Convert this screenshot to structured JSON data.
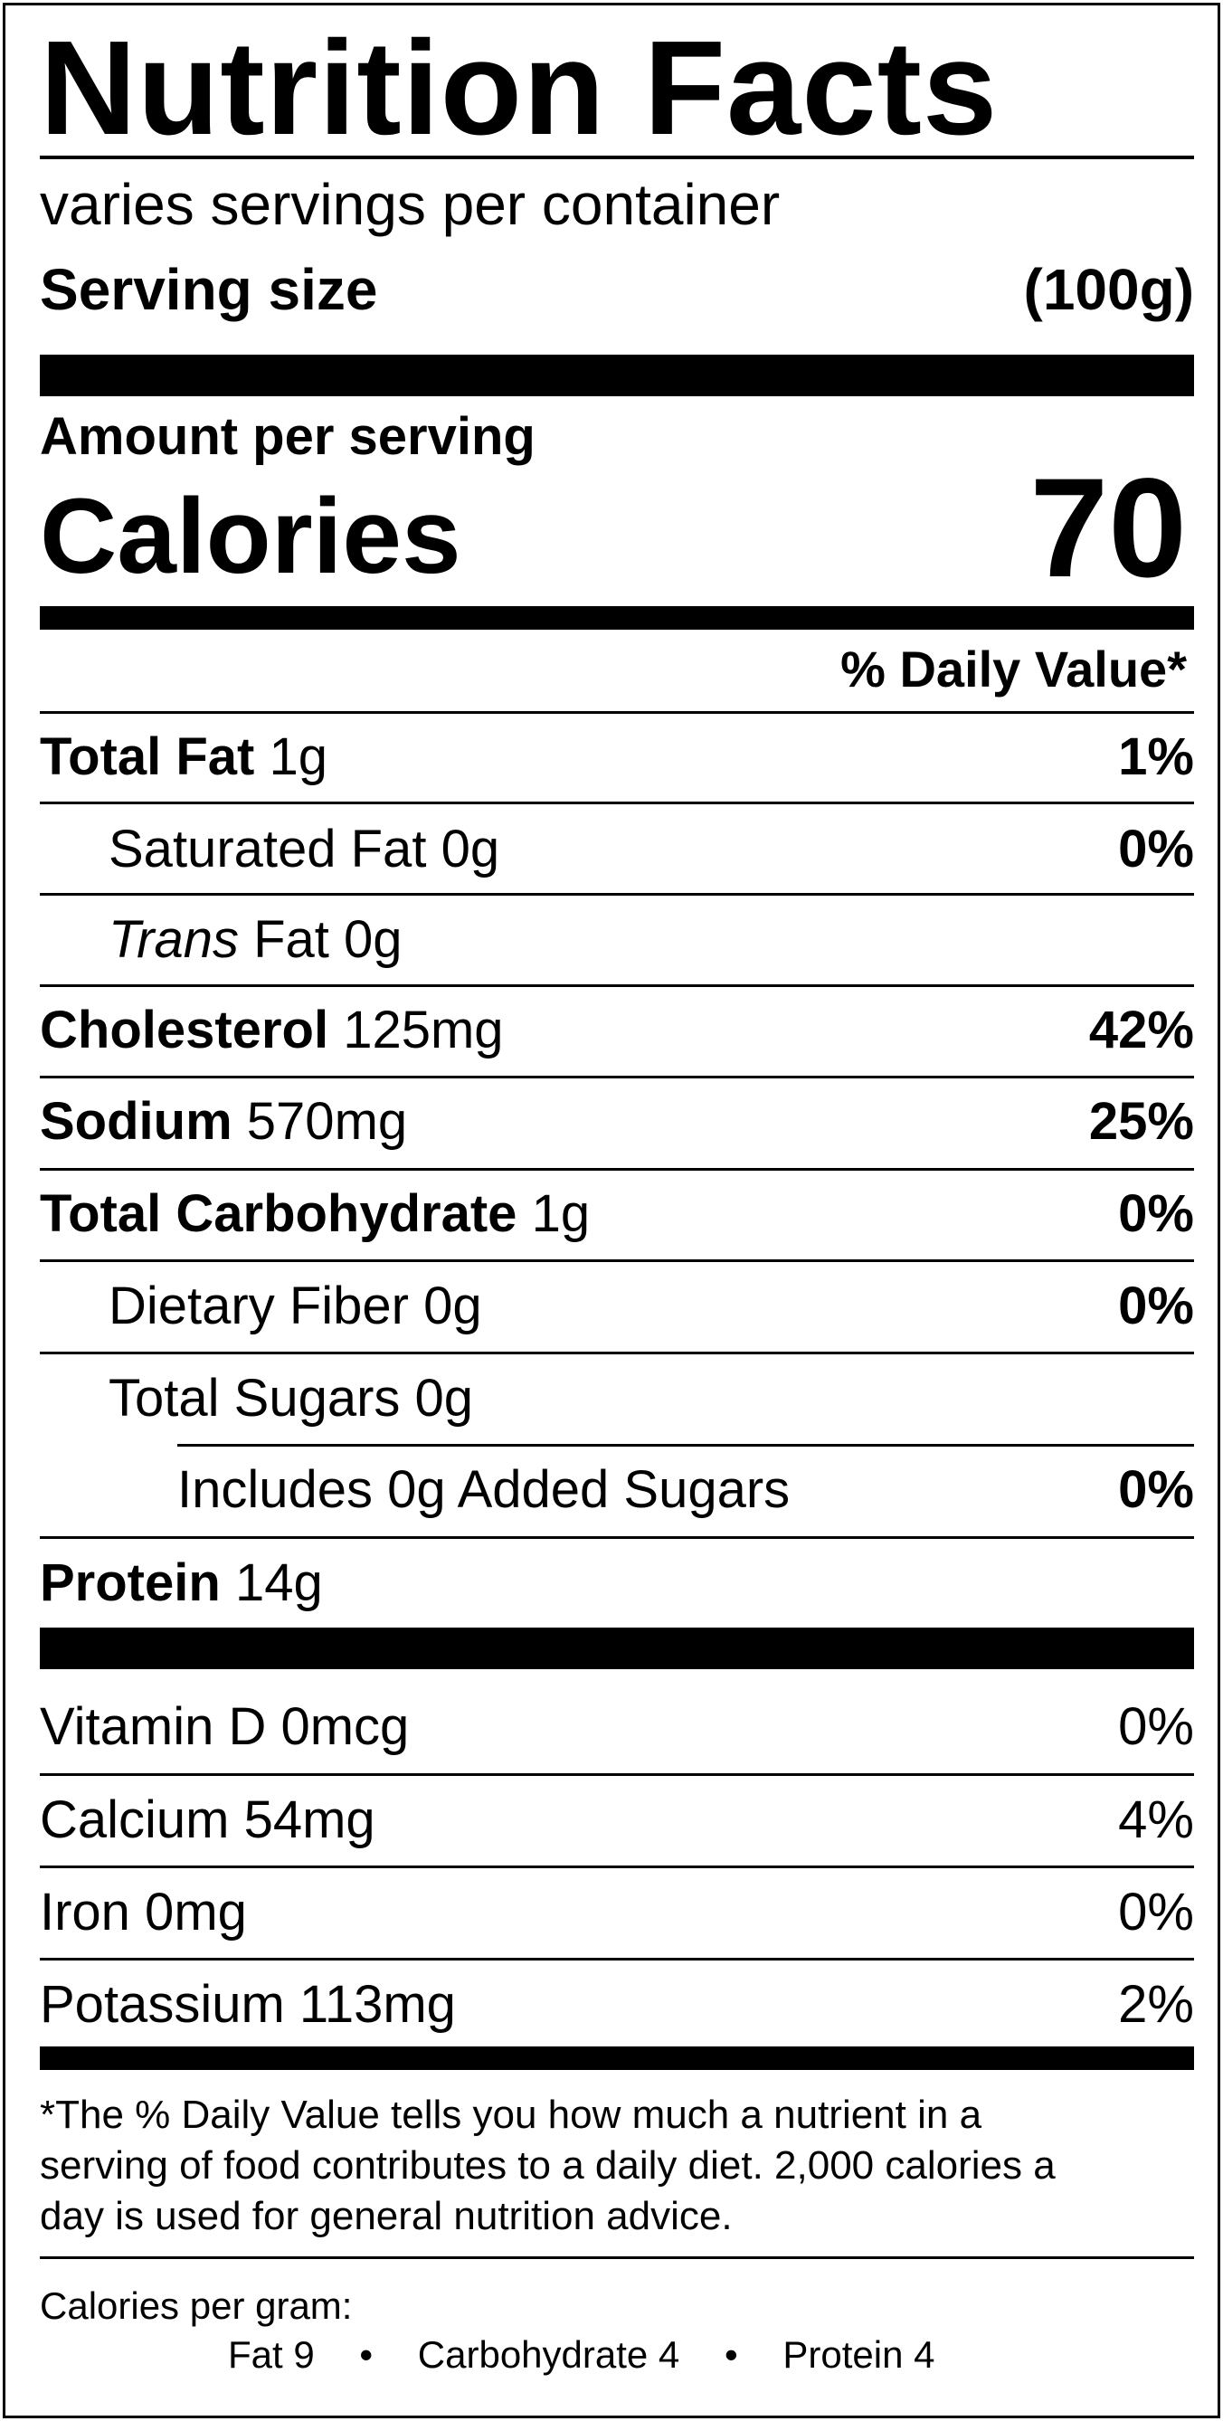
{
  "title": "Nutrition Facts",
  "servings_per_container": "varies servings per container",
  "serving_size": {
    "label": "Serving size",
    "value": "(100g)"
  },
  "amount_per_serving": "Amount per serving",
  "calories": {
    "label": "Calories",
    "value": "70"
  },
  "daily_value_header": "% Daily Value*",
  "nutrients": {
    "total_fat": {
      "name": "Total Fat",
      "amount": "1g",
      "dv": "1%"
    },
    "saturated_fat": {
      "name": "Saturated Fat",
      "amount": "0g",
      "dv": "0%"
    },
    "trans_fat": {
      "name_italic": "Trans",
      "name": "Fat",
      "amount": "0g"
    },
    "cholesterol": {
      "name": "Cholesterol",
      "amount": "125mg",
      "dv": "42%"
    },
    "sodium": {
      "name": "Sodium",
      "amount": "570mg",
      "dv": "25%"
    },
    "total_carbohydrate": {
      "name": "Total Carbohydrate",
      "amount": "1g",
      "dv": "0%"
    },
    "dietary_fiber": {
      "name": "Dietary Fiber",
      "amount": "0g",
      "dv": "0%"
    },
    "total_sugars": {
      "name": "Total Sugars",
      "amount": "0g"
    },
    "added_sugars": {
      "text": "Includes 0g Added Sugars",
      "dv": "0%"
    },
    "protein": {
      "name": "Protein",
      "amount": "14g"
    }
  },
  "vitamins": {
    "vitamin_d": {
      "text": "Vitamin D 0mcg",
      "dv": "0%"
    },
    "calcium": {
      "text": "Calcium 54mg",
      "dv": "4%"
    },
    "iron": {
      "text": "Iron 0mg",
      "dv": "0%"
    },
    "potassium": {
      "text": "Potassium 113mg",
      "dv": "2%"
    }
  },
  "footnote": {
    "line1": "*The % Daily Value tells you how much a nutrient in a",
    "line2": "serving of food contributes to a daily diet. 2,000 calories a",
    "line3": "day is used for general nutrition advice."
  },
  "calories_per_gram": {
    "label": "Calories per gram:",
    "fat": "Fat 9",
    "carbohydrate": "Carbohydrate 4",
    "protein": "Protein 4",
    "separator": "•"
  }
}
